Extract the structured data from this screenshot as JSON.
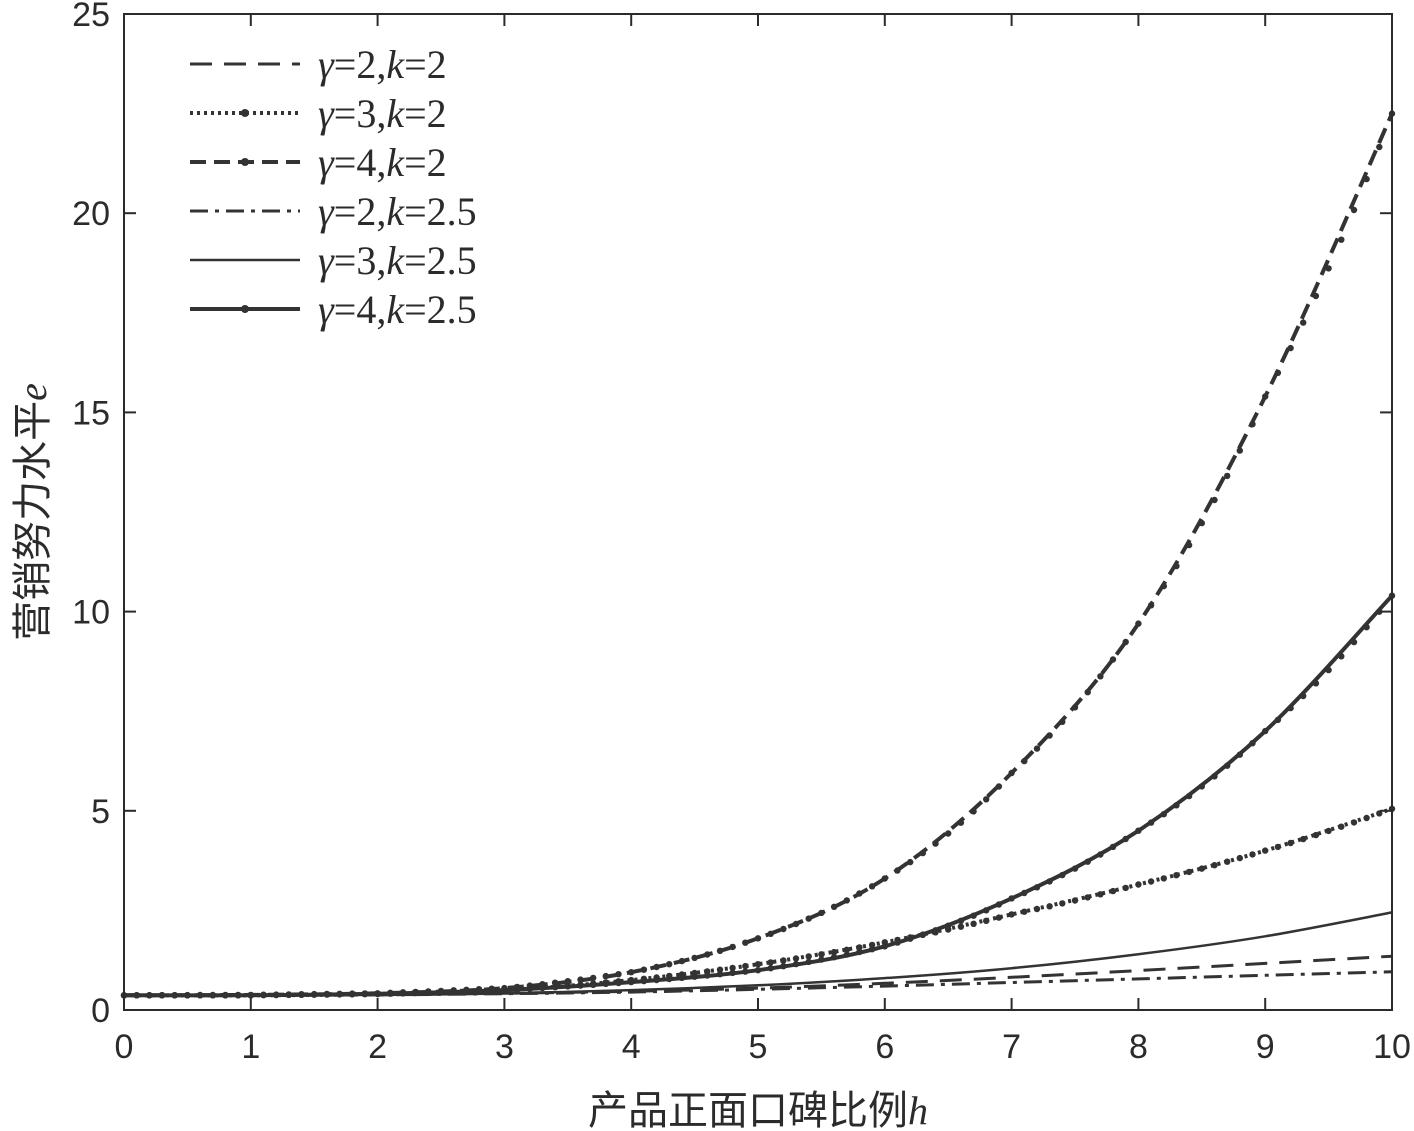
{
  "chart_data": {
    "type": "line",
    "xlabel": "产品正面口碑比例",
    "xlabel_var": "h",
    "ylabel": "营销努力水平",
    "ylabel_var": "e",
    "xlim": [
      0,
      10
    ],
    "ylim": [
      0,
      25
    ],
    "xticks": [
      0,
      1,
      2,
      3,
      4,
      5,
      6,
      7,
      8,
      9,
      10
    ],
    "yticks": [
      0,
      5,
      10,
      15,
      20,
      25
    ],
    "grid": false,
    "legend_position": "top-left",
    "x": [
      0,
      1,
      2,
      3,
      4,
      5,
      6,
      7,
      8,
      9,
      10
    ],
    "series": [
      {
        "name": "γ=2,k=2",
        "gamma": "2",
        "k": "2",
        "style": "dashed",
        "color": "#333333",
        "values": [
          0.37,
          0.37,
          0.38,
          0.42,
          0.47,
          0.55,
          0.67,
          0.82,
          0.99,
          1.17,
          1.35
        ]
      },
      {
        "name": "γ=3,k=2",
        "gamma": "3",
        "k": "2",
        "style": "dotted",
        "color": "#333333",
        "values": [
          0.37,
          0.37,
          0.4,
          0.5,
          0.75,
          1.15,
          1.7,
          2.4,
          3.15,
          4.0,
          5.05
        ]
      },
      {
        "name": "γ=4,k=2",
        "gamma": "4",
        "k": "2",
        "style": "dash-dot-marker",
        "color": "#333333",
        "values": [
          0.37,
          0.38,
          0.42,
          0.55,
          0.95,
          1.8,
          3.3,
          5.95,
          9.7,
          15.4,
          22.5
        ]
      },
      {
        "name": "γ=2,k=2.5",
        "gamma": "2",
        "k": "2.5",
        "style": "dashdot",
        "color": "#333333",
        "values": [
          0.37,
          0.37,
          0.38,
          0.41,
          0.45,
          0.52,
          0.6,
          0.69,
          0.78,
          0.87,
          0.96
        ]
      },
      {
        "name": "γ=3,k=2.5",
        "gamma": "3",
        "k": "2.5",
        "style": "solid",
        "color": "#333333",
        "values": [
          0.37,
          0.37,
          0.38,
          0.42,
          0.5,
          0.62,
          0.8,
          1.05,
          1.4,
          1.85,
          2.45
        ]
      },
      {
        "name": "γ=4,k=2.5",
        "gamma": "4",
        "k": "2.5",
        "style": "solid-marker",
        "color": "#333333",
        "values": [
          0.37,
          0.37,
          0.41,
          0.5,
          0.7,
          1.0,
          1.6,
          2.8,
          4.5,
          7.0,
          10.4
        ]
      }
    ]
  }
}
